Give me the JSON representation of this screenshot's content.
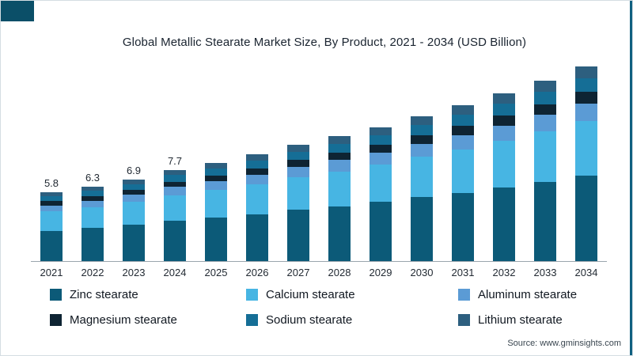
{
  "chart_data": {
    "type": "bar",
    "stacked": true,
    "title": "Global Metallic Stearate Market Size, By Product, 2021 - 2034 (USD Billion)",
    "categories": [
      "2021",
      "2022",
      "2023",
      "2024",
      "2025",
      "2026",
      "2027",
      "2028",
      "2029",
      "2030",
      "2031",
      "2032",
      "2033",
      "2034"
    ],
    "series": [
      {
        "name": "Zinc stearate",
        "color": "#0c5a78",
        "values": [
          2.55,
          2.77,
          3.04,
          3.39,
          3.65,
          3.96,
          4.31,
          4.62,
          4.97,
          5.37,
          5.76,
          6.2,
          6.69,
          7.22
        ]
      },
      {
        "name": "Calcium stearate",
        "color": "#47b5e3",
        "values": [
          1.62,
          1.76,
          1.93,
          2.16,
          2.32,
          2.52,
          2.74,
          2.94,
          3.16,
          3.42,
          3.67,
          3.95,
          4.26,
          4.59
        ]
      },
      {
        "name": "Aluminum stearate",
        "color": "#5b9bd5",
        "values": [
          0.52,
          0.57,
          0.62,
          0.69,
          0.75,
          0.81,
          0.88,
          0.95,
          1.02,
          1.1,
          1.18,
          1.27,
          1.37,
          1.48
        ]
      },
      {
        "name": "Magnesium stearate",
        "color": "#0e2433",
        "values": [
          0.35,
          0.38,
          0.41,
          0.46,
          0.5,
          0.54,
          0.59,
          0.63,
          0.68,
          0.73,
          0.79,
          0.85,
          0.91,
          0.98
        ]
      },
      {
        "name": "Sodium stearate",
        "color": "#156e96",
        "values": [
          0.41,
          0.44,
          0.48,
          0.54,
          0.58,
          0.63,
          0.69,
          0.74,
          0.79,
          0.85,
          0.92,
          0.99,
          1.06,
          1.15
        ]
      },
      {
        "name": "Lithium stearate",
        "color": "#2d5f7f",
        "values": [
          0.35,
          0.38,
          0.41,
          0.46,
          0.5,
          0.54,
          0.59,
          0.63,
          0.68,
          0.73,
          0.79,
          0.85,
          0.91,
          0.98
        ]
      }
    ],
    "totals": [
      5.8,
      6.3,
      6.9,
      7.7,
      8.3,
      9.0,
      9.8,
      10.5,
      11.3,
      12.2,
      13.1,
      14.1,
      15.2,
      16.4
    ],
    "data_labels": [
      "5.8",
      "6.3",
      "6.9",
      "7.7",
      null,
      null,
      null,
      null,
      null,
      null,
      null,
      null,
      null,
      null
    ],
    "xlabel": "",
    "ylabel": "",
    "ylim": [
      0,
      17
    ],
    "grid": false,
    "legend_position": "bottom"
  },
  "source": "Source: www.gminsights.com"
}
